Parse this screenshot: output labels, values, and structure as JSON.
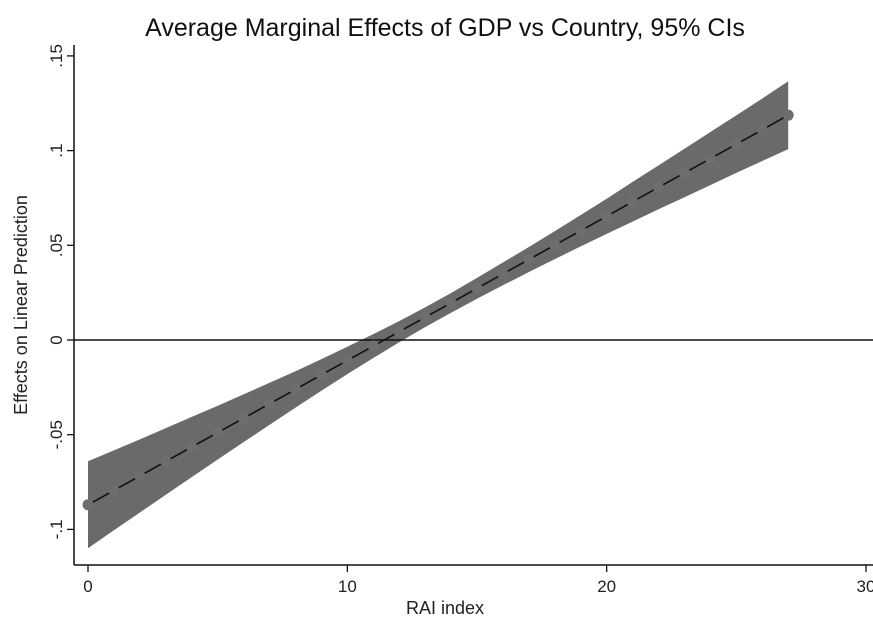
{
  "chart_data": {
    "type": "line",
    "title": "Average Marginal Effects of GDP vs Country, 95% CIs",
    "xlabel": "RAI index",
    "ylabel": "Effects on Linear Prediction",
    "xlim": [
      0,
      30
    ],
    "ylim": [
      -0.1,
      0.15
    ],
    "x_ticks": [
      0,
      10,
      20,
      30
    ],
    "x_tick_labels": [
      "0",
      "10",
      "20",
      "30"
    ],
    "y_ticks": [
      -0.1,
      -0.05,
      0,
      0.05,
      0.1,
      0.15
    ],
    "y_tick_labels": [
      "-.1",
      "-.05",
      "0",
      ".05",
      ".1",
      ".15"
    ],
    "reference_line_y": 0,
    "grid": false,
    "legend": "none",
    "series": [
      {
        "x": [
          0,
          1,
          2,
          3,
          4,
          5,
          6,
          7,
          8,
          9,
          10,
          11,
          12,
          13,
          14,
          15,
          16,
          17,
          18,
          19,
          20,
          21,
          22,
          23,
          24,
          25,
          26,
          27
        ],
        "y": [
          -0.087,
          -0.0794,
          -0.0718,
          -0.0641,
          -0.0565,
          -0.0489,
          -0.0413,
          -0.0337,
          -0.0261,
          -0.0184,
          -0.0108,
          -0.0032,
          0.0044,
          0.012,
          0.0196,
          0.0273,
          0.0349,
          0.0425,
          0.0501,
          0.0577,
          0.0653,
          0.073,
          0.0806,
          0.0882,
          0.0958,
          0.1034,
          0.111,
          0.1187
        ],
        "ci_lower": [
          -0.11,
          -0.1005,
          -0.0911,
          -0.0817,
          -0.0724,
          -0.0631,
          -0.0539,
          -0.0448,
          -0.0357,
          -0.0268,
          -0.018,
          -0.0095,
          -0.0012,
          0.0068,
          0.0144,
          0.0218,
          0.0289,
          0.0359,
          0.0427,
          0.0494,
          0.056,
          0.0625,
          0.069,
          0.0754,
          0.0818,
          0.0882,
          0.0945,
          0.1008
        ],
        "ci_upper": [
          -0.064,
          -0.0583,
          -0.0525,
          -0.0465,
          -0.0406,
          -0.0347,
          -0.0287,
          -0.0226,
          -0.0165,
          -0.0101,
          -0.0036,
          0.0031,
          0.01,
          0.0172,
          0.0248,
          0.0328,
          0.0409,
          0.0491,
          0.0575,
          0.066,
          0.0746,
          0.0835,
          0.0922,
          0.101,
          0.1098,
          0.1186,
          0.1275,
          0.1366
        ],
        "line_color": "#111111",
        "marker_color": "#6e6e6e",
        "band_color": "#6a6a6a"
      }
    ]
  }
}
